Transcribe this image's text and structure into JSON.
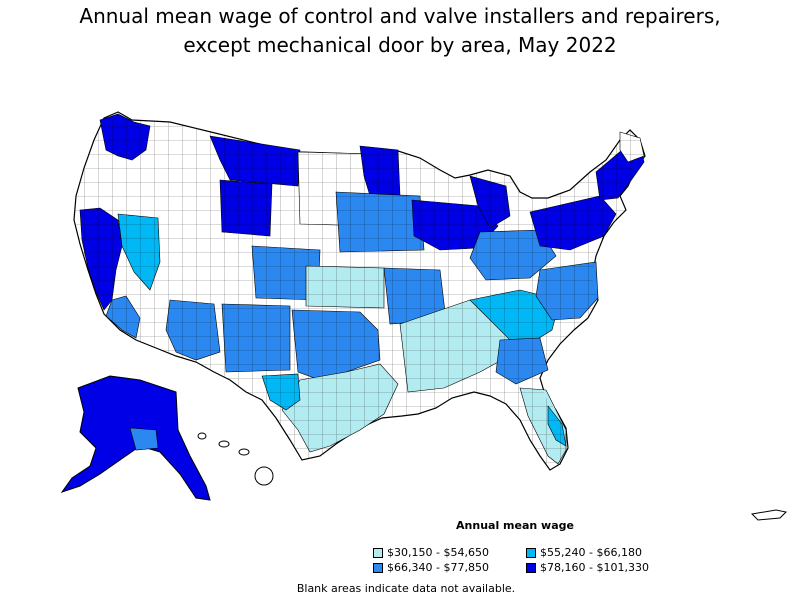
{
  "title": {
    "line1": "Annual mean wage of control and valve installers and repairers,",
    "line2": "except mechanical door by area, May 2022"
  },
  "legend": {
    "title": "Annual mean wage",
    "items": [
      {
        "label": "$30,150 - $54,650",
        "color": "#b2ebf0"
      },
      {
        "label": "$55,240 - $66,180",
        "color": "#00b8f5"
      },
      {
        "label": "$66,340 - $77,850",
        "color": "#2a88f0"
      },
      {
        "label": "$78,160 - $101,330",
        "color": "#0000e6"
      }
    ]
  },
  "note": "Blank areas indicate data not available."
}
